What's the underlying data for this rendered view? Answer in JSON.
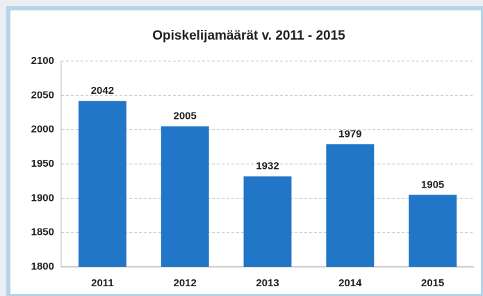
{
  "chart_data": {
    "type": "bar",
    "title": "Opiskelijamäärät v. 2011 - 2015",
    "categories": [
      "2011",
      "2012",
      "2013",
      "2014",
      "2015"
    ],
    "values": [
      2042,
      2005,
      1932,
      1979,
      1905
    ],
    "color": "#2176c7",
    "ylim": [
      1800,
      2100
    ],
    "yticks": [
      1800,
      1850,
      1900,
      1950,
      2000,
      2050,
      2100
    ],
    "grid": true
  }
}
